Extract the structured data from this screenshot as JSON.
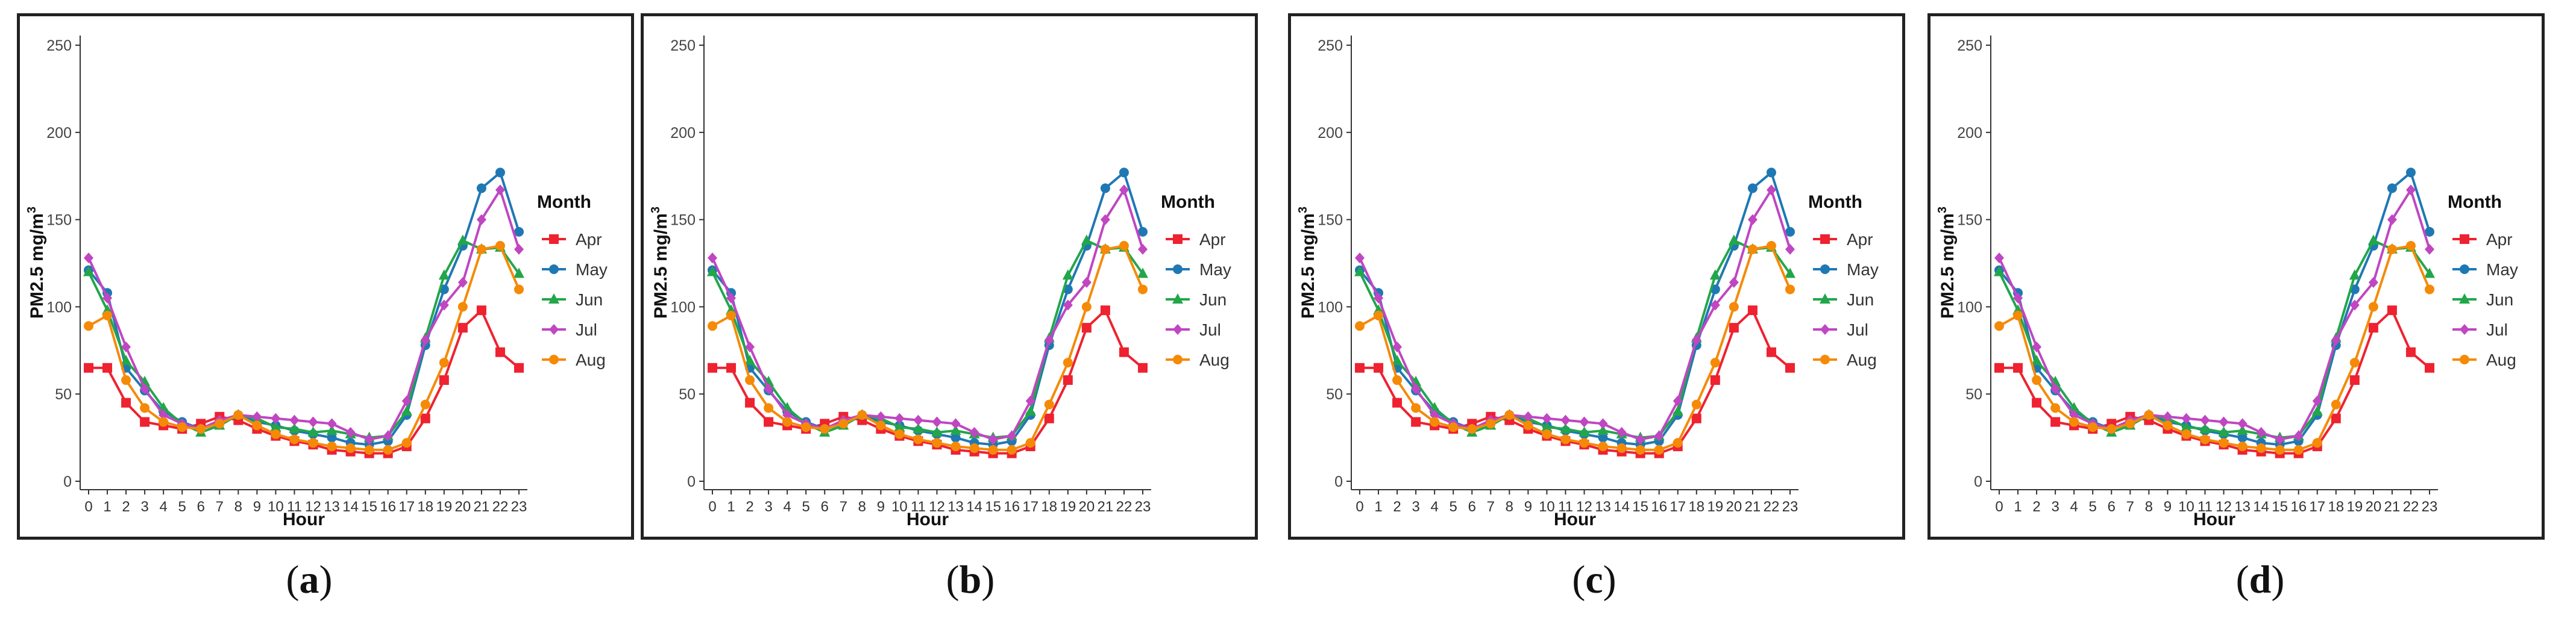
{
  "chart_data": {
    "type": "line",
    "xlabel": "Hour",
    "ylabel": "PM2.5 mg/m",
    "ylabel_sup": "3",
    "ylim": [
      0,
      250
    ],
    "yticks": [
      0,
      50,
      100,
      150,
      200,
      250
    ],
    "xlim": [
      0,
      23
    ],
    "x": [
      "0",
      "1",
      "2",
      "3",
      "4",
      "5",
      "6",
      "7",
      "8",
      "9",
      "10",
      "11",
      "12",
      "13",
      "14",
      "15",
      "16",
      "17",
      "18",
      "19",
      "20",
      "21",
      "22",
      "23"
    ],
    "legend_title": "Month",
    "legend_position": "right",
    "series": [
      {
        "name": "Apr",
        "color": "#ee2230",
        "marker": "square",
        "values": [
          65,
          65,
          45,
          34,
          32,
          30,
          33,
          37,
          35,
          30,
          26,
          23,
          21,
          18,
          17,
          16,
          16,
          20,
          36,
          58,
          88,
          98,
          74,
          65
        ]
      },
      {
        "name": "May",
        "color": "#1f78b4",
        "marker": "circle",
        "values": [
          121,
          108,
          65,
          52,
          40,
          34,
          30,
          33,
          38,
          34,
          32,
          29,
          27,
          25,
          22,
          21,
          23,
          38,
          78,
          110,
          135,
          168,
          177,
          143
        ]
      },
      {
        "name": "Jun",
        "color": "#22a64a",
        "marker": "triangle",
        "values": [
          120,
          98,
          69,
          57,
          42,
          33,
          28,
          32,
          38,
          36,
          31,
          30,
          28,
          29,
          27,
          25,
          26,
          40,
          82,
          118,
          138,
          133,
          134,
          119
        ]
      },
      {
        "name": "Jul",
        "color": "#c046c2",
        "marker": "diamond",
        "values": [
          128,
          105,
          77,
          53,
          38,
          33,
          30,
          35,
          38,
          37,
          36,
          35,
          34,
          33,
          28,
          24,
          26,
          46,
          81,
          101,
          114,
          150,
          167,
          133
        ]
      },
      {
        "name": "Aug",
        "color": "#f58a07",
        "marker": "circle",
        "values": [
          89,
          95,
          58,
          42,
          34,
          31,
          30,
          33,
          38,
          32,
          27,
          24,
          22,
          20,
          19,
          18,
          18,
          22,
          44,
          68,
          100,
          133,
          135,
          110
        ]
      }
    ],
    "panels": [
      {
        "caption_open": "(",
        "caption_label": "a",
        "caption_close": ")"
      },
      {
        "caption_open": "(",
        "caption_label": "b",
        "caption_close": ")"
      },
      {
        "caption_open": "(",
        "caption_label": "c",
        "caption_close": ")"
      },
      {
        "caption_open": "(",
        "caption_label": "d",
        "caption_close": ")"
      }
    ]
  }
}
